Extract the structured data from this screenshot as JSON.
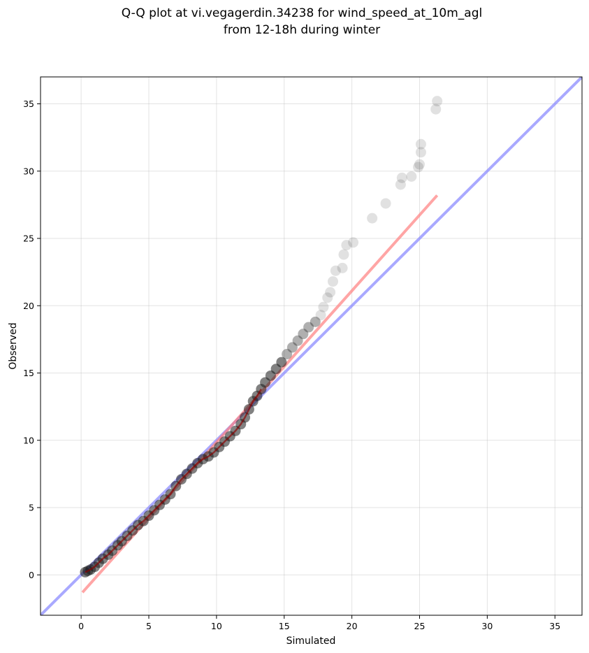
{
  "chart_data": {
    "type": "scatter",
    "title_line1": "Q-Q plot at vi.vegagerdin.34238 for wind_speed_at_10m_agl",
    "title_line2": "from 12-18h during winter",
    "xlabel": "Simulated",
    "ylabel": "Observed",
    "xlim": [
      -3,
      37
    ],
    "ylim": [
      -3,
      37
    ],
    "xticks": [
      0,
      5,
      10,
      15,
      20,
      25,
      30,
      35
    ],
    "yticks": [
      0,
      5,
      10,
      15,
      20,
      25,
      30,
      35
    ],
    "grid": true,
    "colors": {
      "points": "#1a1a1a",
      "fit_line": "#ff7f7f",
      "identity_line": "#8c8cff",
      "dense_trend": "#8b0000"
    },
    "series": [
      {
        "role": "quantiles",
        "points": [
          [
            0.3,
            0.2
          ],
          [
            0.5,
            0.3
          ],
          [
            0.7,
            0.4
          ],
          [
            1.0,
            0.6
          ],
          [
            1.3,
            0.9
          ],
          [
            1.6,
            1.2
          ],
          [
            2.0,
            1.5
          ],
          [
            2.3,
            1.8
          ],
          [
            2.7,
            2.2
          ],
          [
            3.0,
            2.5
          ],
          [
            3.4,
            2.9
          ],
          [
            3.8,
            3.3
          ],
          [
            4.2,
            3.7
          ],
          [
            4.6,
            4.0
          ],
          [
            5.0,
            4.4
          ],
          [
            5.4,
            4.8
          ],
          [
            5.8,
            5.2
          ],
          [
            6.2,
            5.6
          ],
          [
            6.6,
            6.0
          ],
          [
            7.0,
            6.6
          ],
          [
            7.4,
            7.1
          ],
          [
            7.8,
            7.5
          ],
          [
            8.2,
            7.9
          ],
          [
            8.6,
            8.3
          ],
          [
            9.0,
            8.6
          ],
          [
            9.4,
            8.8
          ],
          [
            9.8,
            9.1
          ],
          [
            10.2,
            9.5
          ],
          [
            10.6,
            9.9
          ],
          [
            11.0,
            10.3
          ],
          [
            11.4,
            10.7
          ],
          [
            11.8,
            11.2
          ],
          [
            12.1,
            11.7
          ],
          [
            12.4,
            12.3
          ],
          [
            12.7,
            12.9
          ],
          [
            13.0,
            13.3
          ],
          [
            13.3,
            13.8
          ],
          [
            13.6,
            14.3
          ],
          [
            14.0,
            14.8
          ],
          [
            14.4,
            15.3
          ],
          [
            14.8,
            15.8
          ],
          [
            15.2,
            16.4
          ],
          [
            15.6,
            16.9
          ],
          [
            16.0,
            17.4
          ],
          [
            16.4,
            17.9
          ],
          [
            16.8,
            18.4
          ],
          [
            17.3,
            18.8
          ],
          [
            17.7,
            19.3
          ],
          [
            17.9,
            19.9
          ],
          [
            18.2,
            20.6
          ],
          [
            18.4,
            21.0
          ],
          [
            18.6,
            21.8
          ],
          [
            18.8,
            22.6
          ],
          [
            19.3,
            22.8
          ],
          [
            19.4,
            23.8
          ],
          [
            19.6,
            24.5
          ],
          [
            20.1,
            24.7
          ],
          [
            21.5,
            26.5
          ],
          [
            22.5,
            27.6
          ],
          [
            23.6,
            29.0
          ],
          [
            23.7,
            29.5
          ],
          [
            24.4,
            29.6
          ],
          [
            24.9,
            30.3
          ],
          [
            25.0,
            30.5
          ],
          [
            25.1,
            31.4
          ],
          [
            25.1,
            32.0
          ],
          [
            26.2,
            34.6
          ],
          [
            26.3,
            35.2
          ]
        ]
      },
      {
        "role": "fit",
        "from": [
          0.1,
          -1.3
        ],
        "to": [
          26.3,
          28.2
        ]
      },
      {
        "role": "identity",
        "from": [
          -3,
          -3
        ],
        "to": [
          37,
          37
        ]
      }
    ]
  }
}
